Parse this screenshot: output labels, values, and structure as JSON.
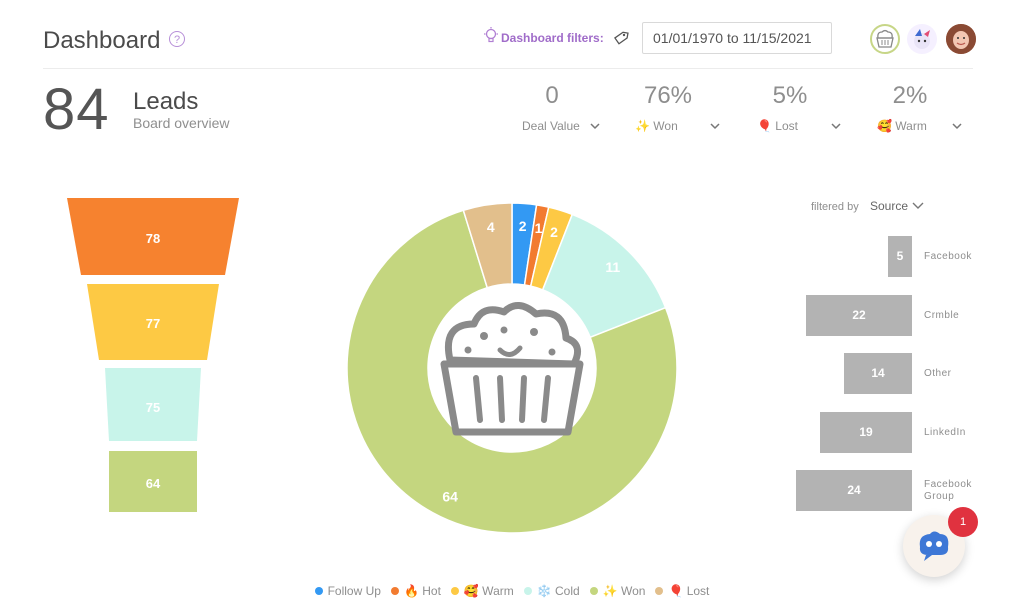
{
  "header": {
    "title": "Dashboard",
    "help_icon": "question-circle-icon",
    "filters_label": "Dashboard filters:",
    "date_range": "01/01/1970 to 11/15/2021",
    "avatars": [
      "muffin-avatar",
      "unicorn-avatar",
      "user-photo-avatar"
    ]
  },
  "summary": {
    "lead_count": "84",
    "leads_label": "Leads",
    "subtitle": "Board overview",
    "stats": [
      {
        "value": "0",
        "label": "Deal Value"
      },
      {
        "value": "76%",
        "label": "Won",
        "emoji": "✨"
      },
      {
        "value": "5%",
        "label": "Lost",
        "emoji": "🎈"
      },
      {
        "value": "2%",
        "label": "Warm",
        "emoji": "🥰"
      }
    ]
  },
  "colors": {
    "follow_up": "#3399f3",
    "hot": "#f27b30",
    "warm": "#fdc944",
    "cold": "#c8f4ea",
    "won": "#c4d67f",
    "lost": "#e2bf8c",
    "bar": "#b3b3b3",
    "badge": "#e0323f"
  },
  "funnel": [
    {
      "value": "78",
      "color": "#f6822f"
    },
    {
      "value": "77",
      "color": "#fdc944"
    },
    {
      "value": "75",
      "color": "#c8f4ea"
    },
    {
      "value": "64",
      "color": "#c4d67f"
    }
  ],
  "chart_data": {
    "type": "pie",
    "title": "",
    "categories": [
      "Follow Up",
      "Hot",
      "Warm",
      "Cold",
      "Won",
      "Lost"
    ],
    "values": [
      2,
      1,
      2,
      11,
      64,
      4
    ],
    "legend_position": "bottom",
    "center_icon": "muffin-icon"
  },
  "source_filter": {
    "label": "filtered by",
    "selected": "Source",
    "bars": [
      {
        "label": "Facebook",
        "value": 5
      },
      {
        "label": "Crmble",
        "value": 22
      },
      {
        "label": "Other",
        "value": 14
      },
      {
        "label": "LinkedIn",
        "value": 19
      },
      {
        "label": "Facebook Group",
        "value": 24
      }
    ]
  },
  "legend": [
    {
      "label": "Follow Up",
      "emoji": ""
    },
    {
      "label": "Hot",
      "emoji": "🔥"
    },
    {
      "label": "Warm",
      "emoji": "🥰"
    },
    {
      "label": "Cold",
      "emoji": "❄️"
    },
    {
      "label": "Won",
      "emoji": "✨"
    },
    {
      "label": "Lost",
      "emoji": "🎈"
    }
  ],
  "chat": {
    "badge_count": "1",
    "icon": "chat-bot-icon"
  }
}
